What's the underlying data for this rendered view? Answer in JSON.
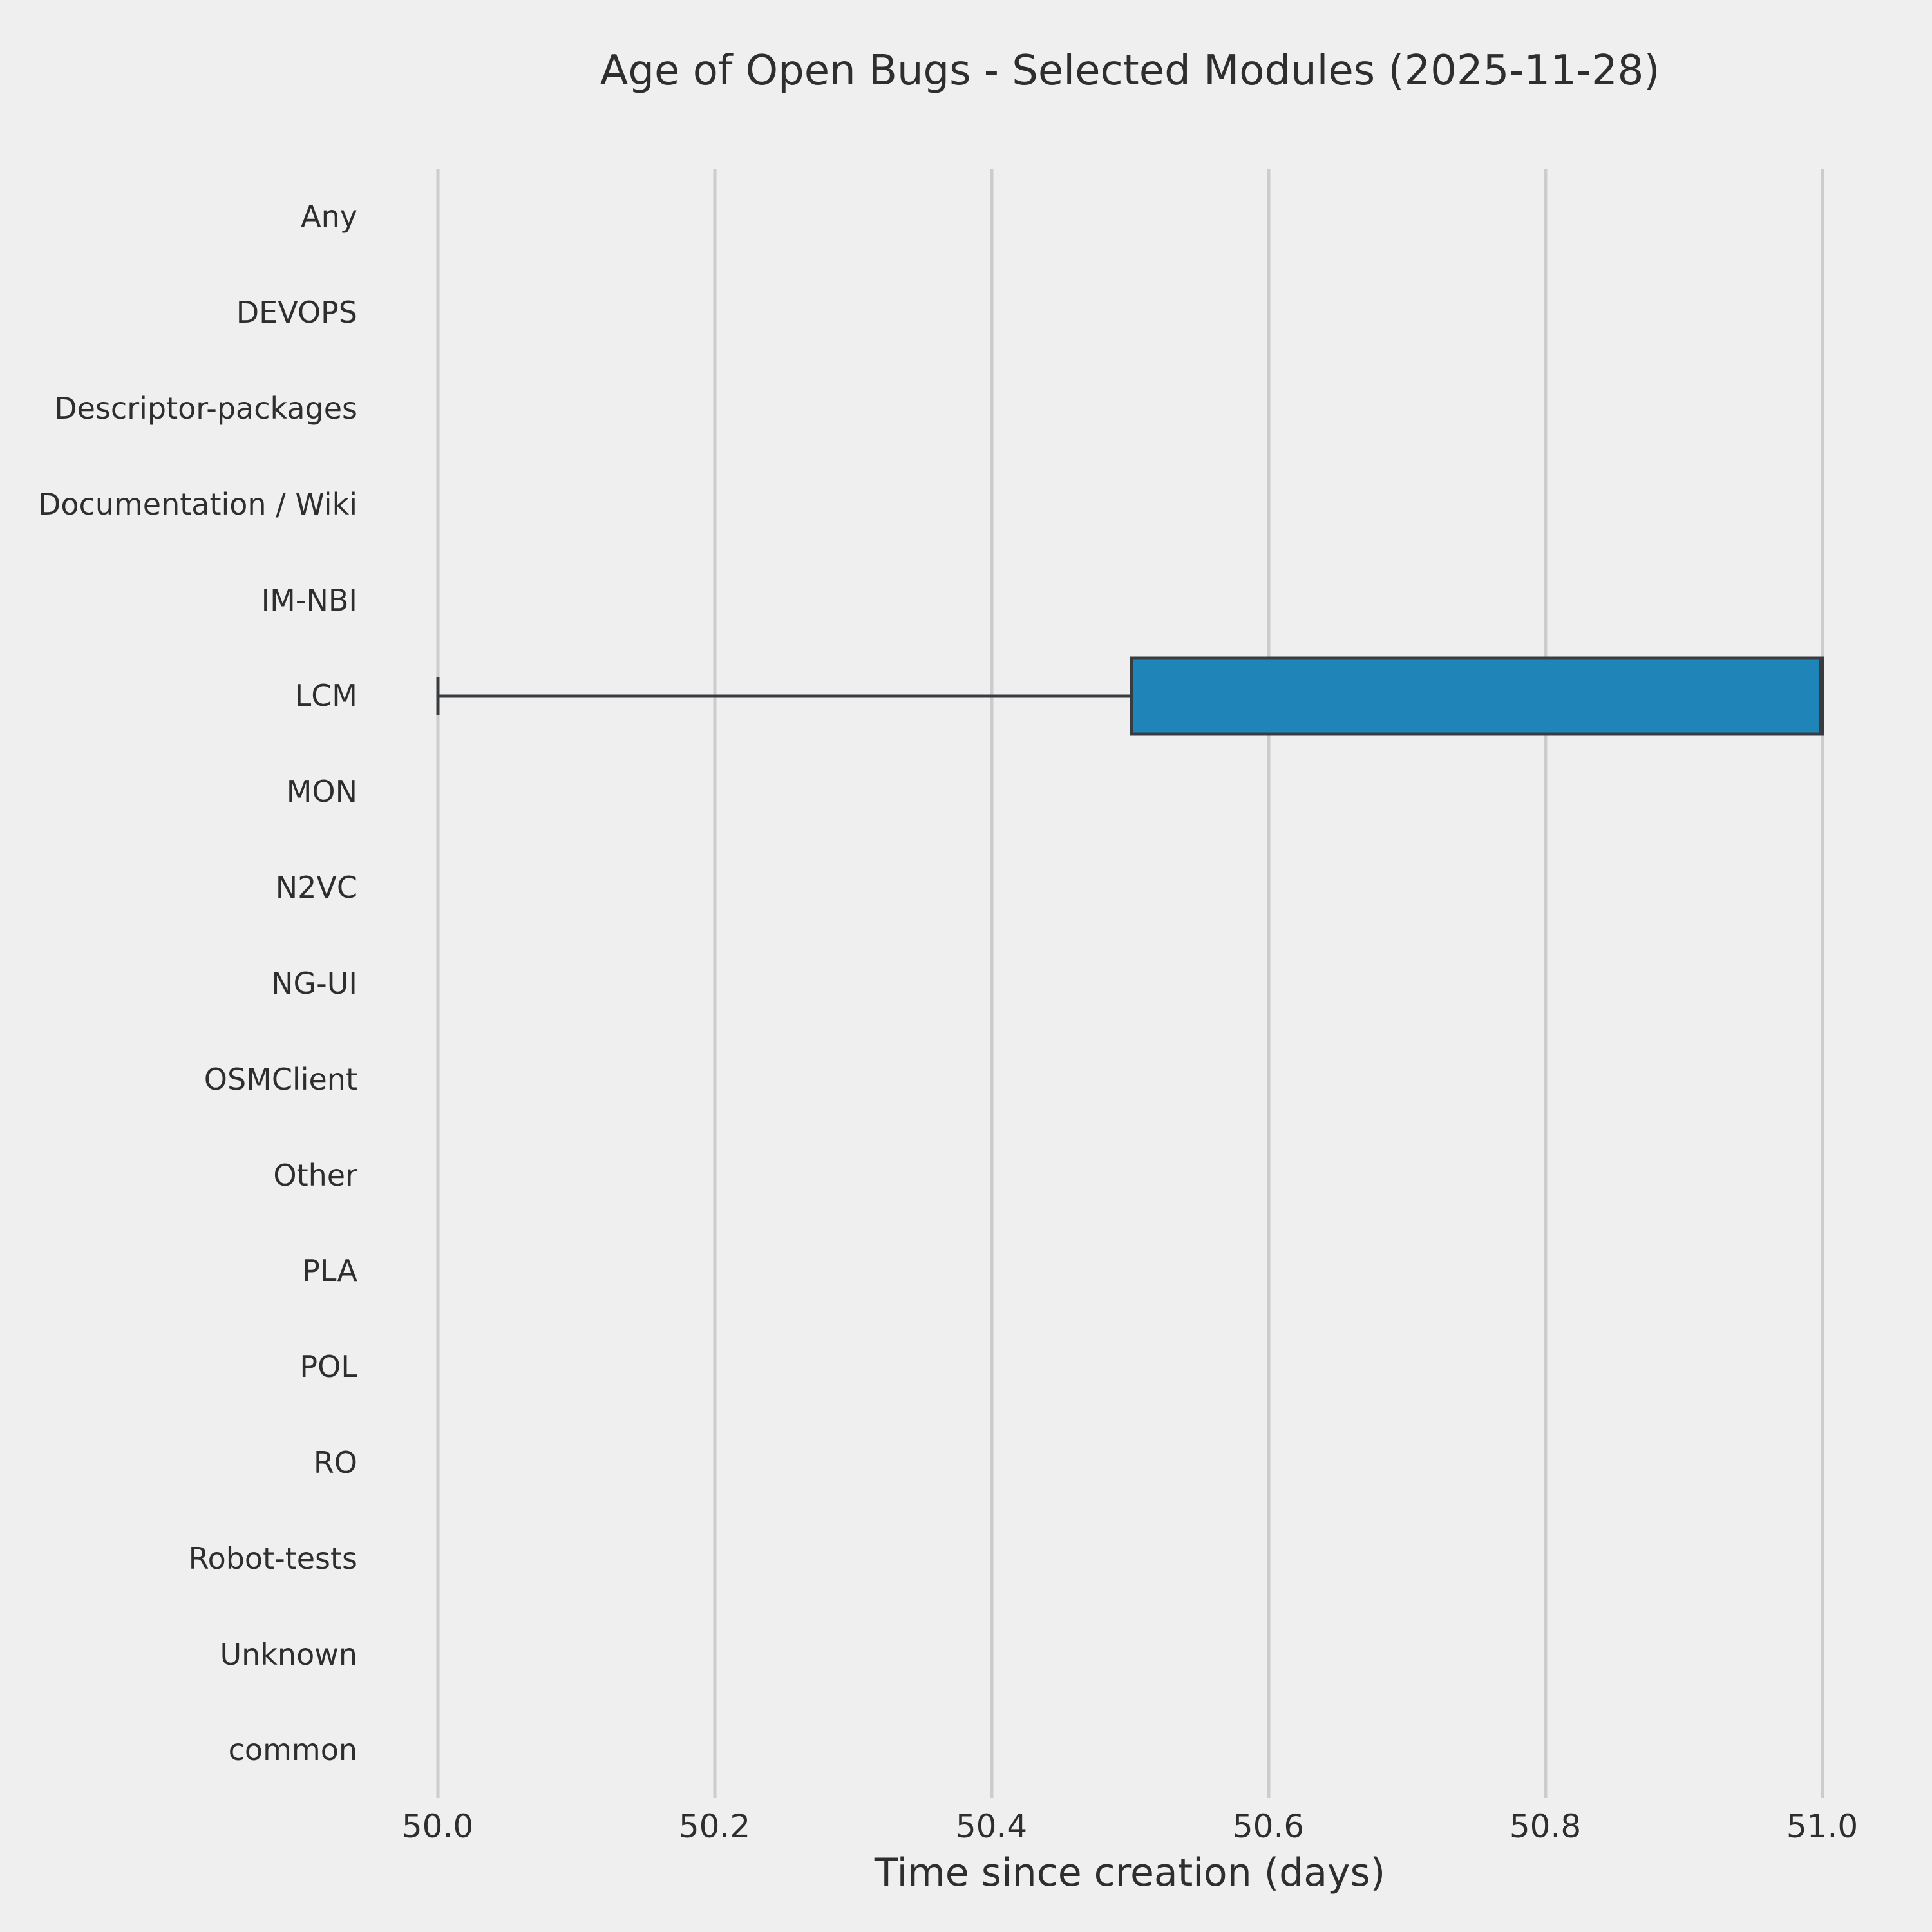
{
  "chart_data": {
    "type": "boxplot",
    "orientation": "horizontal",
    "title": "Age of Open Bugs - Selected Modules (2025-11-28)",
    "xlabel": "Time since creation (days)",
    "ylabel": "",
    "categories": [
      "Any",
      "DEVOPS",
      "Descriptor-packages",
      "Documentation / Wiki",
      "IM-NBI",
      "LCM",
      "MON",
      "N2VC",
      "NG-UI",
      "OSMClient",
      "Other",
      "PLA",
      "POL",
      "RO",
      "Robot-tests",
      "Unknown",
      "common"
    ],
    "x_ticks": [
      50.0,
      50.2,
      50.4,
      50.6,
      50.8,
      51.0
    ],
    "x_tick_labels": [
      "50.0",
      "50.2",
      "50.4",
      "50.6",
      "50.8",
      "51.0"
    ],
    "axis_range": [
      49.95,
      51.05
    ],
    "grid": "vertical-only",
    "legend": "none",
    "boxes": [
      {
        "category": "LCM",
        "whisker_low": 50.0,
        "q1": 50.5,
        "median": 51.0,
        "q3": 51.0,
        "whisker_high": 51.0,
        "outliers": []
      }
    ],
    "colors": {
      "background": "#efefef",
      "grid": "#cccccc",
      "box_fill": "#1f85b8",
      "line": "#383c40",
      "text": "#2e2e2e"
    }
  }
}
